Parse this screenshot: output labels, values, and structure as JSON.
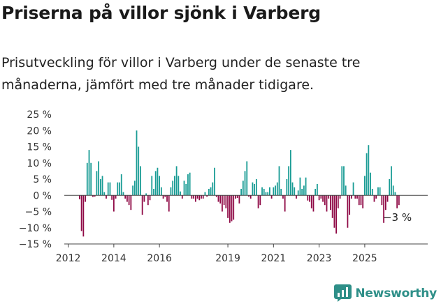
{
  "title": "Priserna på villor sjönk i Varberg",
  "subtitle": "Prisutveckling för villor i Varberg under de senaste tre månaderna, jämfört med tre månader tidigare.",
  "brand": {
    "name": "Newsworthy",
    "icon": "newsworthy-chart-logo-icon",
    "color": "#2e8f88"
  },
  "chart_data": {
    "type": "bar",
    "title": "",
    "xlabel": "",
    "ylabel": "",
    "unit": "%",
    "ylim": [
      -15,
      25
    ],
    "y_ticks": [
      25,
      20,
      15,
      10,
      5,
      0,
      -5,
      -10,
      -15
    ],
    "y_tick_labels": [
      "25 %",
      "20 %",
      "15 %",
      "10 %",
      "5 %",
      "0 %",
      "−5 %",
      "−10 %",
      "−15 %"
    ],
    "x_ticks": [
      2012,
      2014,
      2016,
      2019,
      2021,
      2023,
      2025
    ],
    "x_start": "2012-07",
    "frequency": "monthly",
    "grid": false,
    "colors": {
      "positive": "#1a9c95",
      "negative": "#8f0a46",
      "axis": "#444444"
    },
    "annotation": {
      "text": "−3 %",
      "value": -3
    },
    "values": [
      -1.2,
      -11,
      -12.7,
      -2,
      10,
      14,
      10,
      -0.5,
      -0.4,
      7.5,
      10.5,
      5,
      6,
      1,
      -1,
      4,
      4,
      -1.4,
      -5,
      -1,
      4,
      4,
      6.5,
      1,
      -1,
      -2,
      -3,
      -4.5,
      3,
      4.5,
      20,
      15,
      9,
      -6,
      -2,
      0.6,
      -3,
      -1.5,
      6,
      2,
      7.5,
      8.5,
      6,
      2.5,
      -1,
      -0.5,
      -2,
      -5,
      2.5,
      4.5,
      6,
      9,
      6,
      1.2,
      -1,
      4.5,
      3.5,
      6.5,
      7,
      -1,
      -1,
      -2,
      -1,
      -1.5,
      -1,
      -1,
      1,
      -0.4,
      2,
      2.5,
      4,
      8.5,
      -0.5,
      -2,
      -2.5,
      -5,
      -3,
      -4,
      -7,
      -8.5,
      -8,
      -7.5,
      -1,
      -0.8,
      -2.5,
      2,
      4.5,
      7.5,
      10.5,
      -0.4,
      -1,
      4,
      3.5,
      5,
      -4,
      -3,
      2.5,
      2,
      1,
      1,
      2.5,
      -1,
      2.5,
      3,
      4,
      9,
      2,
      -1,
      -5,
      5,
      9,
      14,
      4,
      2.5,
      -1,
      1.5,
      5.5,
      2,
      3,
      5.5,
      -1.6,
      -2,
      -4,
      -5,
      2,
      3.5,
      -1.5,
      -1,
      -2,
      -3,
      -5,
      -1,
      -4.5,
      -7,
      -10,
      -11.8,
      -4,
      -1,
      9,
      9,
      3,
      -10,
      -6,
      -1,
      4,
      -1,
      -1,
      -3,
      -3,
      -4,
      6,
      13,
      15.5,
      7,
      2,
      -2,
      -1,
      2.5,
      2.5,
      -3,
      -8.5,
      -4.5,
      -2,
      5,
      9,
      3,
      1,
      -4,
      -3
    ]
  }
}
